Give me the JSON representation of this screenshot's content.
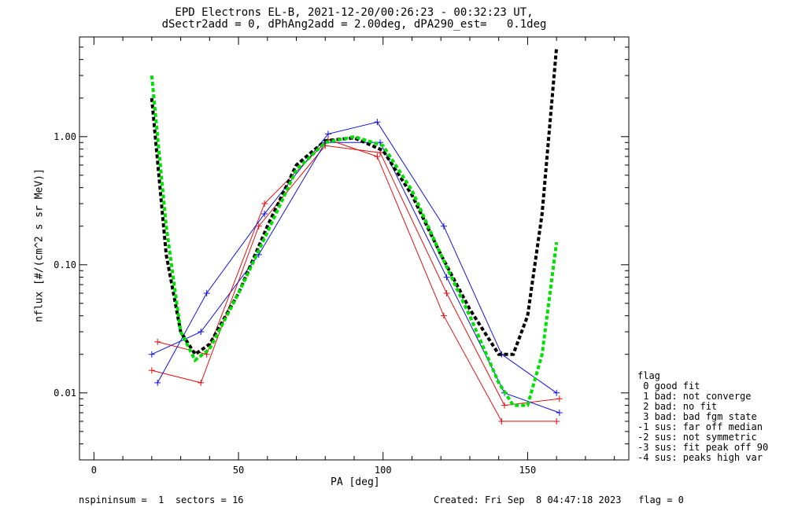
{
  "window": {
    "title_line1": "EPD Electrons EL-B, 2021-12-20/00:26:23 - 00:32:23 UT,",
    "title_line2": "dSectr2add = 0, dPhAng2add = 2.00deg, dPA290_est=   0.1deg"
  },
  "footer": {
    "left": "nspininsum =  1  sectors = 16",
    "right": "Created: Fri Sep  8 04:47:18 2023   flag = 0"
  },
  "legend": {
    "title": "flag",
    "items": [
      " 0 good fit",
      " 1 bad: not converge",
      " 2 bad: no fit",
      " 3 bad: bad fgm state",
      "-1 sus: far off median",
      "-2 sus: not symmetric",
      "-3 sus: fit peak off 90",
      "-4 sus: peaks high var"
    ]
  },
  "colors": {
    "red": "#e01010",
    "blue": "#1010e0",
    "green": "#00e000",
    "black": "#000000"
  },
  "chart_data": {
    "type": "line",
    "xlabel": "PA [deg]",
    "ylabel": "nflux [#/(cm^2 s sr MeV)]",
    "xlim": [
      -5,
      185
    ],
    "ylim": [
      0.003,
      6
    ],
    "yscale": "log",
    "xticks": [
      0,
      50,
      100,
      150
    ],
    "xtick_labels": [
      "0",
      "50",
      "100",
      "150"
    ],
    "yticks": [
      0.01,
      0.1,
      1.0
    ],
    "ytick_labels": [
      "0.01",
      "0.10",
      "1.00"
    ],
    "series": [
      {
        "color": "#e01010",
        "x": [
          20,
          37,
          57,
          80,
          99,
          122,
          142,
          161
        ],
        "y": [
          0.015,
          0.012,
          0.2,
          0.85,
          0.75,
          0.06,
          0.008,
          0.009
        ]
      },
      {
        "color": "#1010e0",
        "x": [
          20,
          37,
          57,
          80,
          99,
          122,
          142,
          161
        ],
        "y": [
          0.02,
          0.03,
          0.12,
          0.9,
          0.9,
          0.08,
          0.01,
          0.007
        ]
      },
      {
        "color": "#e01010",
        "x": [
          22,
          39,
          59,
          81,
          98,
          121,
          141,
          160
        ],
        "y": [
          0.025,
          0.02,
          0.3,
          0.95,
          0.7,
          0.04,
          0.006,
          0.006
        ]
      },
      {
        "color": "#1010e0",
        "x": [
          22,
          39,
          59,
          81,
          98,
          121,
          141,
          160
        ],
        "y": [
          0.012,
          0.06,
          0.25,
          1.05,
          1.3,
          0.2,
          0.02,
          0.01
        ]
      }
    ],
    "fit_black": {
      "color": "#000000",
      "x": [
        20,
        25,
        30,
        35,
        40,
        50,
        60,
        70,
        80,
        90,
        100,
        110,
        120,
        130,
        140,
        145,
        150,
        155,
        158,
        160
      ],
      "y": [
        2.0,
        0.12,
        0.03,
        0.02,
        0.024,
        0.06,
        0.2,
        0.6,
        0.93,
        0.98,
        0.78,
        0.35,
        0.12,
        0.045,
        0.02,
        0.02,
        0.04,
        0.25,
        1.5,
        5.0
      ]
    },
    "fit_green": {
      "color": "#00e000",
      "x": [
        20,
        25,
        30,
        35,
        40,
        50,
        60,
        70,
        80,
        90,
        100,
        110,
        120,
        130,
        140,
        145,
        150,
        155,
        160
      ],
      "y": [
        3.0,
        0.2,
        0.03,
        0.018,
        0.022,
        0.06,
        0.18,
        0.55,
        0.9,
        1.0,
        0.85,
        0.38,
        0.12,
        0.04,
        0.012,
        0.008,
        0.008,
        0.02,
        0.15
      ]
    }
  }
}
